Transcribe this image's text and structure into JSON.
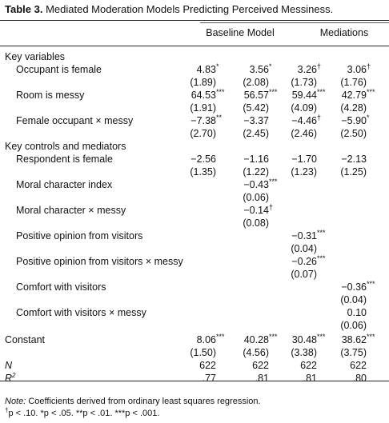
{
  "title": {
    "bold": "Table 3.",
    "rest": " Mediated Moderation Models Predicting Perceived Messiness."
  },
  "headers": {
    "baseline": "Baseline Model",
    "mediations": "Mediations"
  },
  "sections": {
    "key_variables": "Key variables",
    "controls": "Key controls and mediators"
  },
  "rows": [
    {
      "label": "Occupant is female",
      "coef": [
        {
          "v": "4.83",
          "s": "*"
        },
        {
          "v": "3.56",
          "s": "*"
        },
        {
          "v": "3.26",
          "s": "†"
        },
        {
          "v": "3.06",
          "s": "†"
        }
      ],
      "se": [
        "(1.89)",
        "(2.08)",
        "(1.73)",
        "(1.76)"
      ]
    },
    {
      "label": "Room is messy",
      "coef": [
        {
          "v": "64.53",
          "s": "***"
        },
        {
          "v": "56.57",
          "s": "***"
        },
        {
          "v": "59.44",
          "s": "***"
        },
        {
          "v": "42.79",
          "s": "***"
        }
      ],
      "se": [
        "(1.91)",
        "(5.42)",
        "(4.09)",
        "(4.28)"
      ]
    },
    {
      "label": "Female occupant × messy",
      "coef": [
        {
          "v": "−7.38",
          "s": "**"
        },
        {
          "v": "−3.37",
          "s": ""
        },
        {
          "v": "−4.46",
          "s": "†"
        },
        {
          "v": "−5.90",
          "s": "*"
        }
      ],
      "se": [
        "(2.70)",
        "(2.45)",
        "(2.46)",
        "(2.50)"
      ]
    },
    {
      "label": "Respondent is female",
      "coef": [
        {
          "v": "−2.56",
          "s": ""
        },
        {
          "v": "−1.16",
          "s": ""
        },
        {
          "v": "−1.70",
          "s": ""
        },
        {
          "v": "−2.13",
          "s": ""
        }
      ],
      "se": [
        "(1.35)",
        "(1.22)",
        "(1.23)",
        "(1.25)"
      ]
    },
    {
      "label": "Moral character index",
      "coef": [
        {
          "v": "",
          "s": ""
        },
        {
          "v": "−0.43",
          "s": "***"
        },
        {
          "v": "",
          "s": ""
        },
        {
          "v": "",
          "s": ""
        }
      ],
      "se": [
        "",
        "(0.06)",
        "",
        ""
      ]
    },
    {
      "label": "Moral character × messy",
      "coef": [
        {
          "v": "",
          "s": ""
        },
        {
          "v": "−0.14",
          "s": "†"
        },
        {
          "v": "",
          "s": ""
        },
        {
          "v": "",
          "s": ""
        }
      ],
      "se": [
        "",
        "(0.08)",
        "",
        ""
      ]
    },
    {
      "label": "Positive opinion from visitors",
      "coef": [
        {
          "v": "",
          "s": ""
        },
        {
          "v": "",
          "s": ""
        },
        {
          "v": "−0.31",
          "s": "***"
        },
        {
          "v": "",
          "s": ""
        }
      ],
      "se": [
        "",
        "",
        "(0.04)",
        ""
      ]
    },
    {
      "label": "Positive opinion from visitors × messy",
      "coef": [
        {
          "v": "",
          "s": ""
        },
        {
          "v": "",
          "s": ""
        },
        {
          "v": "−0.26",
          "s": "***"
        },
        {
          "v": "",
          "s": ""
        }
      ],
      "se": [
        "",
        "",
        "(0.07)",
        ""
      ]
    },
    {
      "label": "Comfort with visitors",
      "coef": [
        {
          "v": "",
          "s": ""
        },
        {
          "v": "",
          "s": ""
        },
        {
          "v": "",
          "s": ""
        },
        {
          "v": "−0.36",
          "s": "***"
        }
      ],
      "se": [
        "",
        "",
        "",
        "(0.04)"
      ]
    },
    {
      "label": "Comfort with visitors × messy",
      "coef": [
        {
          "v": "",
          "s": ""
        },
        {
          "v": "",
          "s": ""
        },
        {
          "v": "",
          "s": ""
        },
        {
          "v": "0.10",
          "s": ""
        }
      ],
      "se": [
        "",
        "",
        "",
        "(0.06)"
      ]
    },
    {
      "label": "Constant",
      "coef": [
        {
          "v": "8.06",
          "s": "***"
        },
        {
          "v": "40.28",
          "s": "***"
        },
        {
          "v": "30.48",
          "s": "***"
        },
        {
          "v": "38.62",
          "s": "***"
        }
      ],
      "se": [
        "(1.50)",
        "(4.56)",
        "(3.38)",
        "(3.75)"
      ]
    }
  ],
  "stats": [
    {
      "label": "N",
      "values": [
        "622",
        "622",
        "622",
        "622"
      ]
    },
    {
      "label": "R",
      "sup": "2",
      "values": [
        ".77",
        ".81",
        ".81",
        ".80"
      ]
    }
  ],
  "note": {
    "prefix": "Note:",
    "text": " Coefficients derived from ordinary least squares regression.",
    "line2": "p < .10. *p < .05. **p < .01. ***p < .001.",
    "dagger": "†"
  }
}
